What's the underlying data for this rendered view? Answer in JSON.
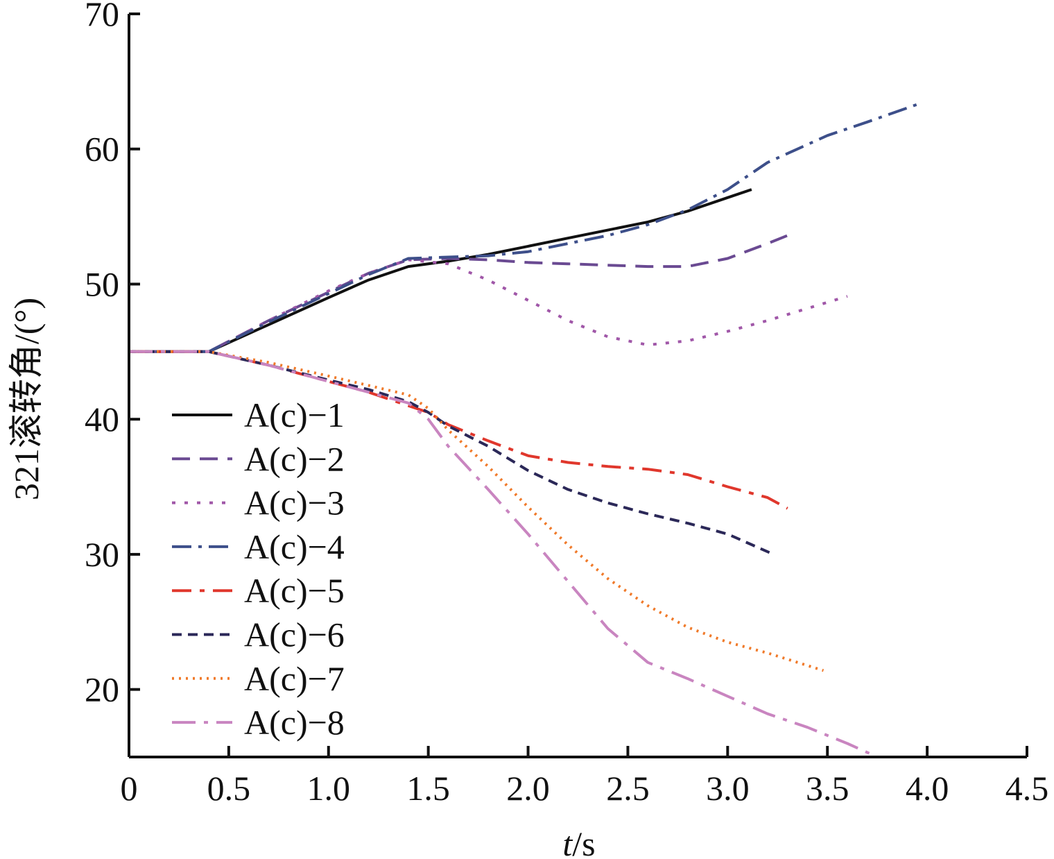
{
  "chart_data": {
    "type": "line",
    "title": "",
    "xlabel_italic": "t",
    "xlabel_unit": "/s",
    "ylabel": "321滚转角/(°)",
    "xlim": [
      0,
      4.5
    ],
    "ylim": [
      15,
      70
    ],
    "x_ticks": [
      "0",
      "0.5",
      "1.0",
      "1.5",
      "2.0",
      "2.5",
      "3.0",
      "3.5",
      "4.0",
      "4.5"
    ],
    "x_tick_values": [
      0,
      0.5,
      1.0,
      1.5,
      2.0,
      2.5,
      3.0,
      3.5,
      4.0,
      4.5
    ],
    "y_ticks": [
      "20",
      "30",
      "40",
      "50",
      "60",
      "70"
    ],
    "y_tick_values": [
      20,
      30,
      40,
      50,
      60,
      70
    ],
    "grid": false,
    "legend_position": "lower-left",
    "series": [
      {
        "name": "A(c)−1",
        "color": "#111111",
        "dash": "",
        "width": 4,
        "points": [
          [
            0,
            45
          ],
          [
            0.4,
            45
          ],
          [
            0.7,
            47
          ],
          [
            1.0,
            49
          ],
          [
            1.2,
            50.3
          ],
          [
            1.4,
            51.3
          ],
          [
            1.6,
            51.7
          ],
          [
            1.8,
            52.2
          ],
          [
            2.0,
            52.8
          ],
          [
            2.2,
            53.4
          ],
          [
            2.4,
            54
          ],
          [
            2.6,
            54.6
          ],
          [
            2.8,
            55.4
          ],
          [
            3.0,
            56.4
          ],
          [
            3.12,
            57
          ]
        ]
      },
      {
        "name": "A(c)−2",
        "color": "#6a4a92",
        "dash": "26 14",
        "width": 4,
        "points": [
          [
            0,
            45
          ],
          [
            0.4,
            45
          ],
          [
            0.7,
            47.3
          ],
          [
            1.0,
            49.4
          ],
          [
            1.2,
            50.8
          ],
          [
            1.4,
            51.8
          ],
          [
            1.6,
            51.9
          ],
          [
            1.8,
            51.8
          ],
          [
            2.0,
            51.6
          ],
          [
            2.2,
            51.5
          ],
          [
            2.4,
            51.4
          ],
          [
            2.6,
            51.3
          ],
          [
            2.8,
            51.3
          ],
          [
            3.0,
            51.9
          ],
          [
            3.2,
            53
          ],
          [
            3.3,
            53.6
          ]
        ]
      },
      {
        "name": "A(c)−3",
        "color": "#a057a8",
        "dash": "5 13",
        "width": 4,
        "points": [
          [
            0,
            45
          ],
          [
            0.4,
            45
          ],
          [
            0.7,
            47.3
          ],
          [
            1.0,
            49.5
          ],
          [
            1.2,
            50.8
          ],
          [
            1.4,
            51.8
          ],
          [
            1.6,
            51.5
          ],
          [
            1.8,
            50.3
          ],
          [
            2.0,
            48.8
          ],
          [
            2.2,
            47.3
          ],
          [
            2.4,
            46.1
          ],
          [
            2.6,
            45.5
          ],
          [
            2.8,
            45.8
          ],
          [
            3.0,
            46.5
          ],
          [
            3.2,
            47.3
          ],
          [
            3.4,
            48.2
          ],
          [
            3.6,
            49.1
          ]
        ]
      },
      {
        "name": "A(c)−4",
        "color": "#3d4f8a",
        "dash": "28 10 5 10",
        "width": 4,
        "points": [
          [
            0,
            45
          ],
          [
            0.4,
            45
          ],
          [
            0.7,
            47.2
          ],
          [
            1.0,
            49.3
          ],
          [
            1.2,
            50.7
          ],
          [
            1.4,
            51.9
          ],
          [
            1.6,
            52
          ],
          [
            1.8,
            52.1
          ],
          [
            2.0,
            52.4
          ],
          [
            2.2,
            53
          ],
          [
            2.4,
            53.6
          ],
          [
            2.6,
            54.4
          ],
          [
            2.8,
            55.5
          ],
          [
            3.0,
            57
          ],
          [
            3.2,
            59
          ],
          [
            3.5,
            61
          ],
          [
            3.7,
            62
          ],
          [
            3.95,
            63.3
          ]
        ]
      },
      {
        "name": "A(c)−5",
        "color": "#e0372c",
        "dash": "28 12 7 12",
        "width": 4,
        "points": [
          [
            0,
            45
          ],
          [
            0.4,
            45
          ],
          [
            0.7,
            44
          ],
          [
            1.0,
            42.8
          ],
          [
            1.2,
            42
          ],
          [
            1.4,
            41
          ],
          [
            1.5,
            40.5
          ],
          [
            1.6,
            39.6
          ],
          [
            1.8,
            38.4
          ],
          [
            2.0,
            37.3
          ],
          [
            2.2,
            36.8
          ],
          [
            2.4,
            36.5
          ],
          [
            2.6,
            36.3
          ],
          [
            2.8,
            35.9
          ],
          [
            3.0,
            35
          ],
          [
            3.2,
            34.2
          ],
          [
            3.3,
            33.4
          ]
        ]
      },
      {
        "name": "A(c)−6",
        "color": "#2b2858",
        "dash": "14 9",
        "width": 4,
        "points": [
          [
            0,
            45
          ],
          [
            0.4,
            45
          ],
          [
            0.7,
            44
          ],
          [
            1.0,
            42.9
          ],
          [
            1.2,
            42.2
          ],
          [
            1.4,
            41.3
          ],
          [
            1.5,
            40.5
          ],
          [
            1.6,
            39.5
          ],
          [
            1.8,
            38
          ],
          [
            2.0,
            36.2
          ],
          [
            2.2,
            34.8
          ],
          [
            2.4,
            33.8
          ],
          [
            2.6,
            33
          ],
          [
            2.8,
            32.3
          ],
          [
            3.0,
            31.5
          ],
          [
            3.23,
            30
          ]
        ]
      },
      {
        "name": "A(c)−7",
        "color": "#f07a2a",
        "dash": "3 7",
        "width": 4,
        "points": [
          [
            0,
            45
          ],
          [
            0.4,
            45
          ],
          [
            0.7,
            44.2
          ],
          [
            1.0,
            43.2
          ],
          [
            1.2,
            42.5
          ],
          [
            1.4,
            41.8
          ],
          [
            1.5,
            40.8
          ],
          [
            1.6,
            39.2
          ],
          [
            1.8,
            36.5
          ],
          [
            2.0,
            33.5
          ],
          [
            2.2,
            30.7
          ],
          [
            2.4,
            28.2
          ],
          [
            2.6,
            26.2
          ],
          [
            2.8,
            24.6
          ],
          [
            3.0,
            23.5
          ],
          [
            3.2,
            22.7
          ],
          [
            3.48,
            21.4
          ]
        ]
      },
      {
        "name": "A(c)−8",
        "color": "#c985c0",
        "dash": "34 12 6 12",
        "width": 4,
        "points": [
          [
            0,
            45
          ],
          [
            0.4,
            45
          ],
          [
            0.7,
            44
          ],
          [
            1.0,
            42.8
          ],
          [
            1.2,
            42
          ],
          [
            1.4,
            41.2
          ],
          [
            1.5,
            40
          ],
          [
            1.6,
            38
          ],
          [
            1.8,
            34.8
          ],
          [
            2.0,
            31.5
          ],
          [
            2.2,
            28
          ],
          [
            2.4,
            24.5
          ],
          [
            2.6,
            22
          ],
          [
            2.8,
            20.8
          ],
          [
            3.0,
            19.5
          ],
          [
            3.2,
            18.2
          ],
          [
            3.4,
            17.2
          ],
          [
            3.6,
            16
          ],
          [
            3.75,
            15
          ]
        ]
      }
    ]
  }
}
